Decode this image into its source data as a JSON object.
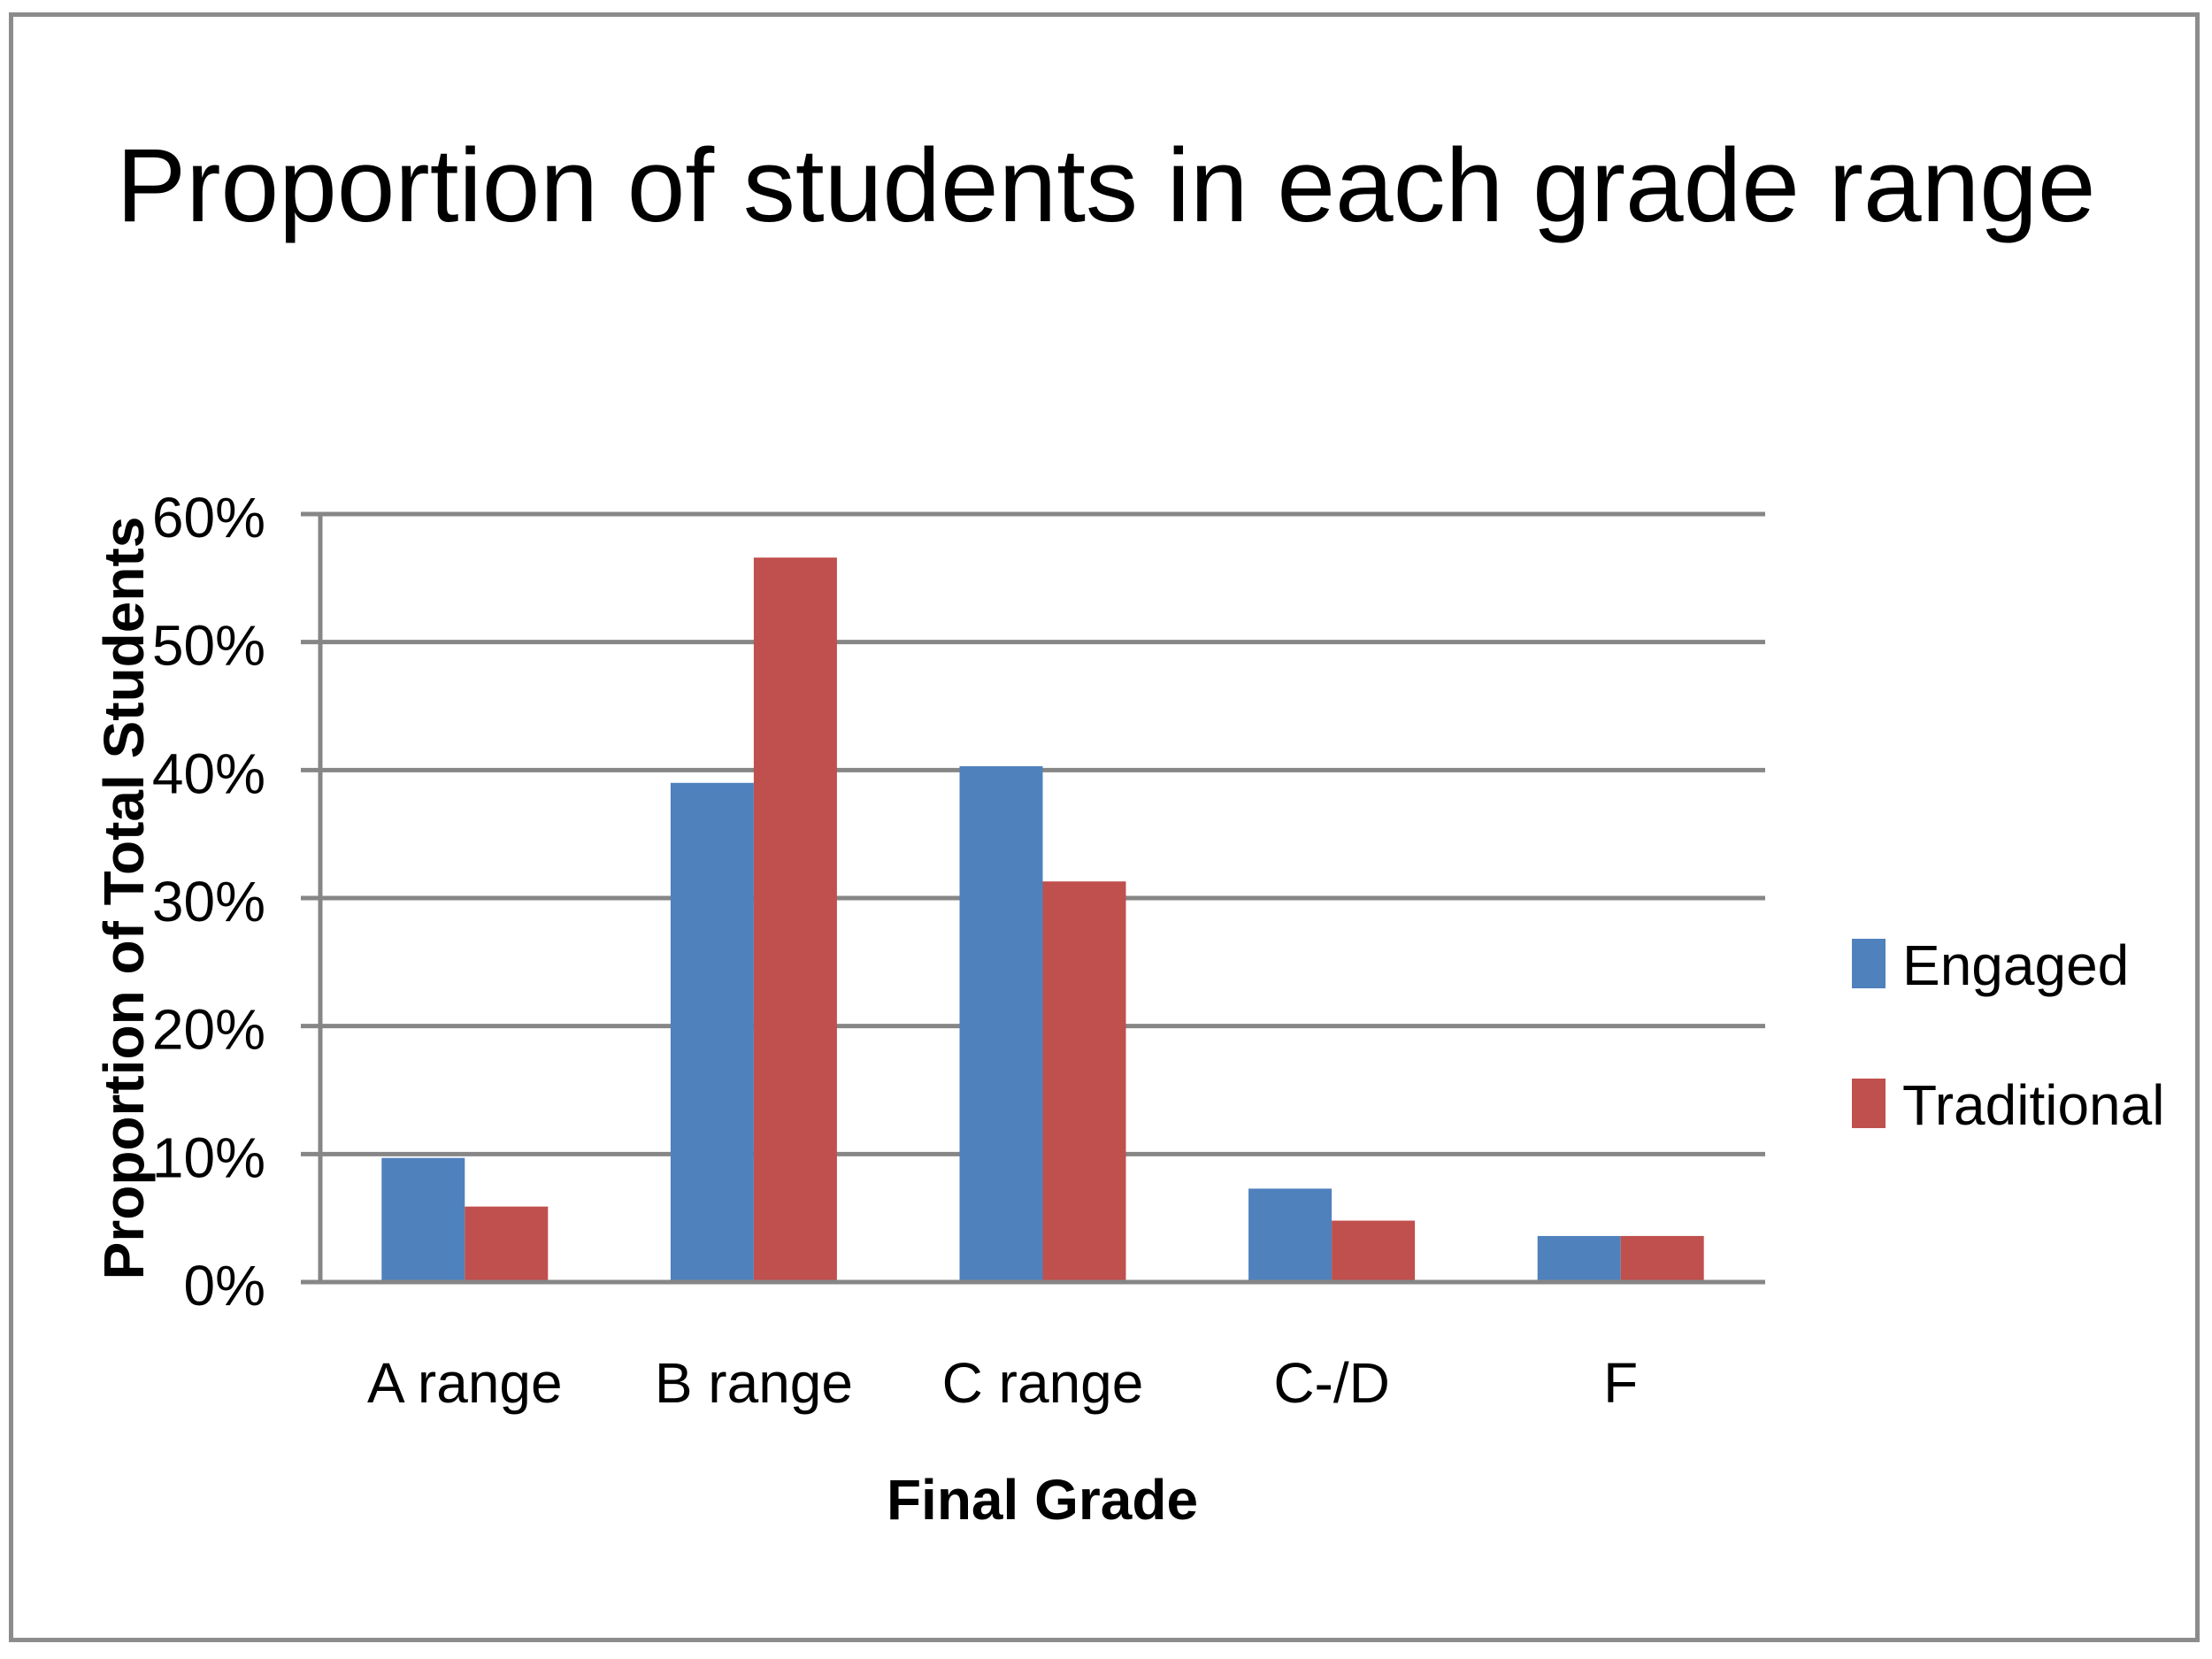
{
  "chart_data": {
    "type": "bar",
    "title": "Proportion of students in each grade range",
    "xlabel": "Final Grade",
    "ylabel": "Proportion of Total Students",
    "ylim": [
      0,
      60
    ],
    "ytick_values": [
      0,
      10,
      20,
      30,
      40,
      50,
      60
    ],
    "ytick_labels": [
      "0%",
      "10%",
      "20%",
      "30%",
      "40%",
      "50%",
      "60%"
    ],
    "grid": true,
    "legend_position": "right",
    "categories": [
      "A range",
      "B range",
      "C range",
      "C-/D",
      "F"
    ],
    "series": [
      {
        "name": "Engaged",
        "color": "#4f81bd",
        "values": [
          9.7,
          39.0,
          40.3,
          7.3,
          3.6
        ]
      },
      {
        "name": "Traditional",
        "color": "#c0504d",
        "values": [
          5.9,
          56.6,
          31.3,
          4.8,
          3.6
        ]
      }
    ]
  }
}
